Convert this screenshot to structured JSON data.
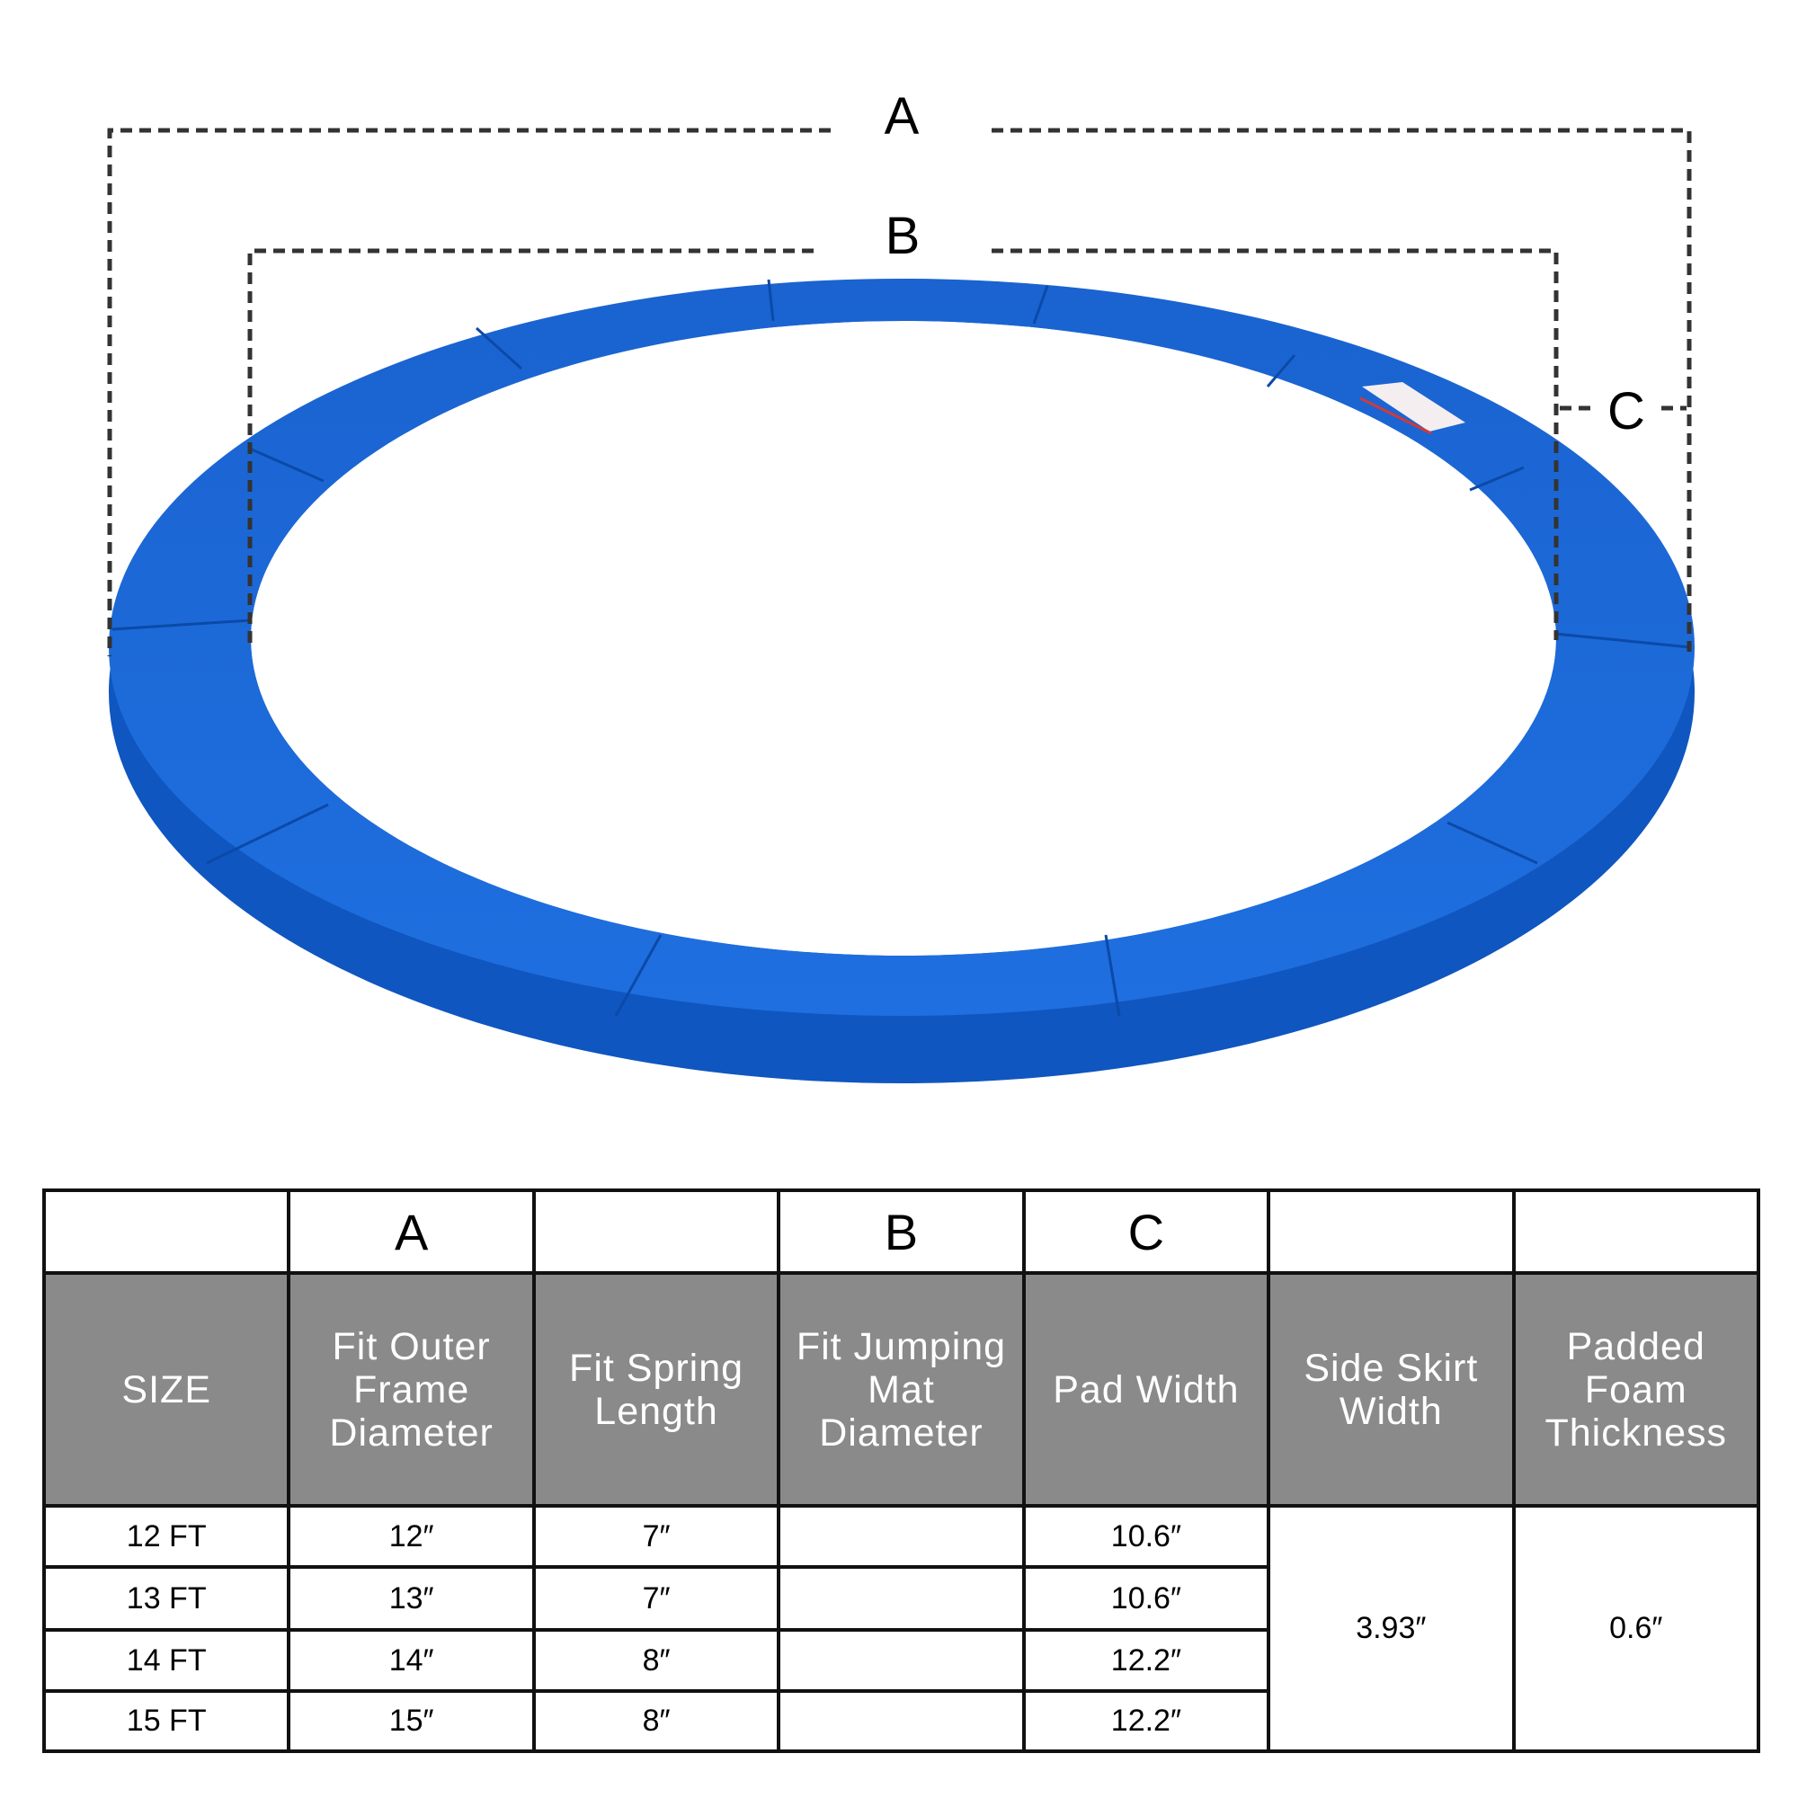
{
  "diagram": {
    "labels": {
      "a": "A",
      "b": "B",
      "c": "C"
    },
    "product_color": "#1565d8",
    "dash_color": "#333333"
  },
  "table": {
    "letter_row": [
      "",
      "A",
      "",
      "B",
      "C",
      "",
      ""
    ],
    "headers": [
      "SIZE",
      "Fit Outer Frame Diameter",
      "Fit Spring Length",
      "Fit Jumping Mat Diameter",
      "Pad Width",
      "Side Skirt Width",
      "Padded Foam Thickness"
    ],
    "rows": [
      {
        "size": "12 FT",
        "outer_frame": "12″",
        "spring": "7″",
        "mat": "",
        "pad_width": "10.6″"
      },
      {
        "size": "13 FT",
        "outer_frame": "13″",
        "spring": "7″",
        "mat": "",
        "pad_width": "10.6″"
      },
      {
        "size": "14 FT",
        "outer_frame": "14″",
        "spring": "8″",
        "mat": "",
        "pad_width": "12.2″"
      },
      {
        "size": "15 FT",
        "outer_frame": "15″",
        "spring": "8″",
        "mat": "",
        "pad_width": "12.2″"
      }
    ],
    "side_skirt_width": "3.93″",
    "padded_foam_thickness": "0.6″",
    "header_bg": "#8a8a8a"
  }
}
